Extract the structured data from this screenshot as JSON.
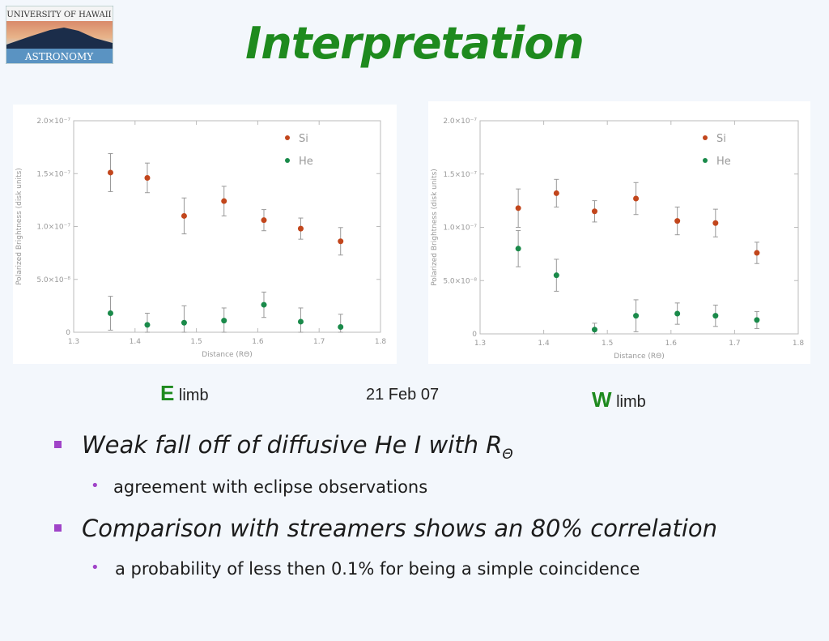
{
  "header": {
    "logo_line1": "UNIVERSITY OF HAWAII",
    "logo_line2": "ASTRONOMY",
    "title": "Interpretation"
  },
  "captions": {
    "left_letter": "E",
    "left_word": "limb",
    "date": "21 Feb 07",
    "right_letter": "W",
    "right_word": "limb"
  },
  "bullets": {
    "b1": "Weak fall off of diffusive He I with R",
    "b1_sub": "Θ",
    "b1_1": "agreement with eclipse observations",
    "b2": "Comparison with streamers shows an 80% correlation",
    "b2_1": " a probability of less then 0.1% for being a simple coincidence"
  },
  "colors": {
    "si": "#c2461c",
    "he": "#1a8a4a",
    "title": "#1e8a1e",
    "bullet": "#a044c8"
  },
  "chart_data": [
    {
      "type": "scatter",
      "xlabel": "Distance (RΘ)",
      "ylabel": "Polarized Brightness (disk units)",
      "xlim": [
        1.3,
        1.8
      ],
      "ylim": [
        0,
        2e-07
      ],
      "xticks": [
        1.3,
        1.4,
        1.5,
        1.6,
        1.7,
        1.8
      ],
      "xtick_labels": [
        "1.3",
        "1.4",
        "1.5",
        "1.6",
        "1.7",
        "1.8"
      ],
      "yticks": [
        0,
        5e-08,
        1e-07,
        1.5e-07,
        2e-07
      ],
      "ytick_labels": [
        "0",
        "5.0×10⁻⁸",
        "1.0×10⁻⁷",
        "1.5×10⁻⁷",
        "2.0×10⁻⁷"
      ],
      "legend_position": "top-right",
      "series": [
        {
          "name": "Si",
          "color": "#c2461c",
          "x": [
            1.36,
            1.42,
            1.48,
            1.545,
            1.61,
            1.67,
            1.735
          ],
          "y": [
            1.51e-07,
            1.46e-07,
            1.1e-07,
            1.24e-07,
            1.06e-07,
            9.8e-08,
            8.6e-08
          ],
          "err": [
            1.8e-08,
            1.4e-08,
            1.7e-08,
            1.4e-08,
            1e-08,
            1e-08,
            1.3e-08
          ]
        },
        {
          "name": "He",
          "color": "#1a8a4a",
          "x": [
            1.36,
            1.42,
            1.48,
            1.545,
            1.61,
            1.67,
            1.735
          ],
          "y": [
            1.8e-08,
            7e-09,
            9e-09,
            1.1e-08,
            2.6e-08,
            1e-08,
            5e-09
          ],
          "err": [
            1.6e-08,
            1.1e-08,
            1.6e-08,
            1.2e-08,
            1.2e-08,
            1.3e-08,
            1.2e-08
          ]
        }
      ]
    },
    {
      "type": "scatter",
      "xlabel": "Distance (RΘ)",
      "ylabel": "Polarized Brightness (disk units)",
      "xlim": [
        1.3,
        1.8
      ],
      "ylim": [
        0,
        2e-07
      ],
      "xticks": [
        1.3,
        1.4,
        1.5,
        1.6,
        1.7,
        1.8
      ],
      "xtick_labels": [
        "1.3",
        "1.4",
        "1.5",
        "1.6",
        "1.7",
        "1.8"
      ],
      "yticks": [
        0,
        5e-08,
        1e-07,
        1.5e-07,
        2e-07
      ],
      "ytick_labels": [
        "0",
        "5.0×10⁻⁸",
        "1.0×10⁻⁷",
        "1.5×10⁻⁷",
        "2.0×10⁻⁷"
      ],
      "legend_position": "top-right",
      "series": [
        {
          "name": "Si",
          "color": "#c2461c",
          "x": [
            1.36,
            1.42,
            1.48,
            1.545,
            1.61,
            1.67,
            1.735
          ],
          "y": [
            1.18e-07,
            1.32e-07,
            1.15e-07,
            1.27e-07,
            1.06e-07,
            1.04e-07,
            7.6e-08
          ],
          "err": [
            1.8e-08,
            1.3e-08,
            1e-08,
            1.5e-08,
            1.3e-08,
            1.3e-08,
            1e-08
          ]
        },
        {
          "name": "He",
          "color": "#1a8a4a",
          "x": [
            1.36,
            1.42,
            1.48,
            1.545,
            1.61,
            1.67,
            1.735
          ],
          "y": [
            8e-08,
            5.5e-08,
            4e-09,
            1.7e-08,
            1.9e-08,
            1.7e-08,
            1.3e-08
          ],
          "err": [
            1.7e-08,
            1.5e-08,
            6e-09,
            1.5e-08,
            1e-08,
            1e-08,
            8e-09
          ]
        }
      ]
    }
  ]
}
